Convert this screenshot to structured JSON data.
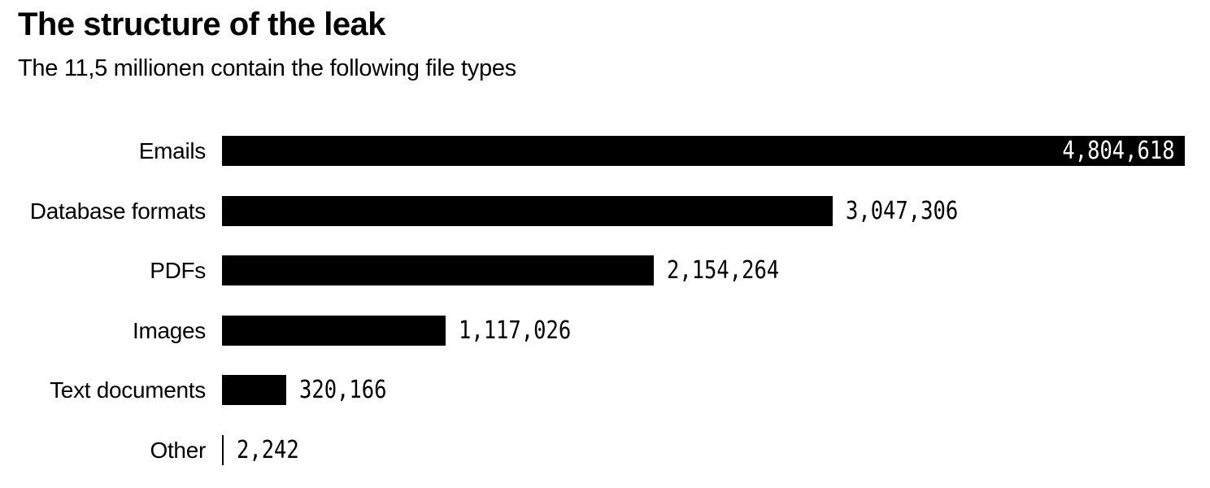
{
  "header": {
    "title": "The structure of the leak",
    "subtitle": "The 11,5 millionen contain the following file types"
  },
  "chart_data": {
    "type": "bar",
    "orientation": "horizontal",
    "title": "The structure of the leak",
    "subtitle": "The 11,5 millionen contain the following file types",
    "categories": [
      "Emails",
      "Database formats",
      "PDFs",
      "Images",
      "Text documents",
      "Other"
    ],
    "values": [
      4804618,
      3047306,
      2154264,
      1117026,
      320166,
      2242
    ],
    "value_labels": [
      "4,804,618",
      "3,047,306",
      "2,154,264",
      "1,117,026",
      "320,166",
      "2,242"
    ],
    "value_label_position": [
      "inside",
      "outside",
      "outside",
      "outside",
      "outside",
      "outside"
    ],
    "xlim": [
      0,
      4804618
    ],
    "grid": false,
    "legend": false,
    "bar_color": "#000000",
    "inside_label_color": "#ffffff",
    "outside_label_color": "#000000",
    "background_color": "#ffffff",
    "text_color": "#000000"
  }
}
